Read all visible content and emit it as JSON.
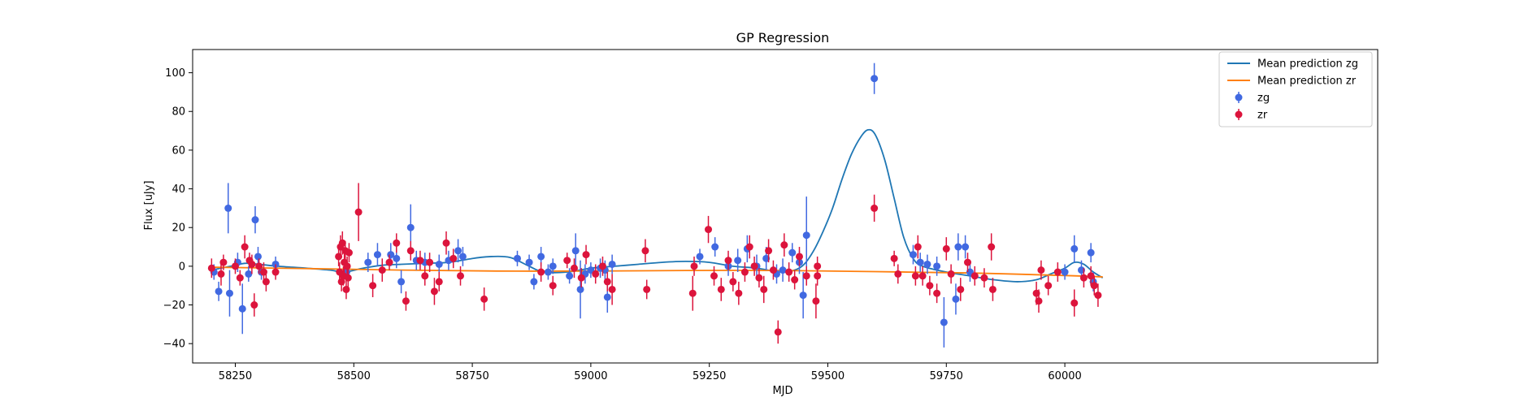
{
  "chart_data": {
    "type": "scatter",
    "title": "GP Regression",
    "xlabel": "MJD",
    "ylabel": "Flux [uJy]",
    "xlim": [
      58160,
      60660
    ],
    "ylim": [
      -50,
      112
    ],
    "xticks": [
      58250,
      58500,
      58750,
      59000,
      59250,
      59500,
      59750,
      60000
    ],
    "yticks": [
      -40,
      -20,
      0,
      20,
      40,
      60,
      80,
      100
    ],
    "legend_position": "top-right",
    "lines": [
      {
        "name": "Mean prediction zg",
        "color": "#1f77b4",
        "points": [
          [
            58200,
            -2
          ],
          [
            58240,
            0
          ],
          [
            58270,
            1.5
          ],
          [
            58300,
            1
          ],
          [
            58340,
            0
          ],
          [
            58400,
            -1
          ],
          [
            58450,
            -2
          ],
          [
            58480,
            -3
          ],
          [
            58520,
            -1
          ],
          [
            58560,
            0.5
          ],
          [
            58600,
            1
          ],
          [
            58650,
            1.5
          ],
          [
            58700,
            2
          ],
          [
            58750,
            4
          ],
          [
            58790,
            5
          ],
          [
            58830,
            4.5
          ],
          [
            58870,
            0
          ],
          [
            58900,
            -3
          ],
          [
            58950,
            -3
          ],
          [
            59000,
            -1
          ],
          [
            59050,
            0
          ],
          [
            59100,
            1
          ],
          [
            59150,
            2
          ],
          [
            59200,
            2.5
          ],
          [
            59250,
            2
          ],
          [
            59300,
            0
          ],
          [
            59350,
            -1
          ],
          [
            59400,
            -3
          ],
          [
            59430,
            -2
          ],
          [
            59450,
            1
          ],
          [
            59470,
            8
          ],
          [
            59490,
            18
          ],
          [
            59510,
            30
          ],
          [
            59530,
            45
          ],
          [
            59550,
            58
          ],
          [
            59570,
            67
          ],
          [
            59585,
            70.5
          ],
          [
            59600,
            68
          ],
          [
            59620,
            55
          ],
          [
            59640,
            35
          ],
          [
            59660,
            15
          ],
          [
            59680,
            4
          ],
          [
            59700,
            0
          ],
          [
            59750,
            -3
          ],
          [
            59800,
            -5
          ],
          [
            59850,
            -7
          ],
          [
            59900,
            -8
          ],
          [
            59940,
            -7
          ],
          [
            59970,
            -4
          ],
          [
            60000,
            -1
          ],
          [
            60020,
            2
          ],
          [
            60040,
            1
          ],
          [
            60060,
            -3
          ],
          [
            60080,
            -6
          ]
        ]
      },
      {
        "name": "Mean prediction zr",
        "color": "#ff7f0e",
        "points": [
          [
            58200,
            -0.5
          ],
          [
            58400,
            -1.2
          ],
          [
            58600,
            -2
          ],
          [
            58800,
            -2.5
          ],
          [
            59000,
            -2.5
          ],
          [
            59200,
            -2.2
          ],
          [
            59400,
            -2.2
          ],
          [
            59600,
            -2.8
          ],
          [
            59800,
            -3.5
          ],
          [
            60000,
            -4.8
          ],
          [
            60080,
            -5.5
          ]
        ]
      }
    ],
    "series": [
      {
        "name": "zg",
        "color": "#4169e1",
        "points": [
          [
            58205,
            -3,
            4
          ],
          [
            58215,
            -13,
            5
          ],
          [
            58235,
            30,
            13
          ],
          [
            58238,
            -14,
            12
          ],
          [
            58255,
            2,
            5
          ],
          [
            58265,
            -22,
            13
          ],
          [
            58278,
            -4,
            4
          ],
          [
            58292,
            24,
            7
          ],
          [
            58298,
            5,
            5
          ],
          [
            58305,
            -3,
            4
          ],
          [
            58335,
            1,
            4
          ],
          [
            58485,
            -3,
            4
          ],
          [
            58530,
            2,
            5
          ],
          [
            58550,
            6,
            6
          ],
          [
            58578,
            6,
            6
          ],
          [
            58590,
            4,
            5
          ],
          [
            58600,
            -8,
            6
          ],
          [
            58620,
            20,
            12
          ],
          [
            58632,
            3,
            5
          ],
          [
            58650,
            2,
            5
          ],
          [
            58680,
            1,
            5
          ],
          [
            58700,
            3,
            5
          ],
          [
            58720,
            8,
            6
          ],
          [
            58730,
            5,
            5
          ],
          [
            58845,
            4,
            4
          ],
          [
            58870,
            2,
            4
          ],
          [
            58880,
            -8,
            4
          ],
          [
            58895,
            5,
            5
          ],
          [
            58910,
            -3,
            4
          ],
          [
            58920,
            0,
            4
          ],
          [
            58955,
            -5,
            4
          ],
          [
            58968,
            8,
            9
          ],
          [
            58978,
            -12,
            15
          ],
          [
            58988,
            -4,
            5
          ],
          [
            59000,
            -2,
            4
          ],
          [
            59020,
            -1,
            5
          ],
          [
            59030,
            -2,
            5
          ],
          [
            59035,
            -16,
            8
          ],
          [
            59045,
            1,
            5
          ],
          [
            59230,
            5,
            4
          ],
          [
            59262,
            10,
            5
          ],
          [
            59290,
            0,
            5
          ],
          [
            59310,
            3,
            6
          ],
          [
            59330,
            9,
            7
          ],
          [
            59350,
            0,
            6
          ],
          [
            59370,
            4,
            6
          ],
          [
            59392,
            -4,
            5
          ],
          [
            59405,
            -2,
            6
          ],
          [
            59425,
            7,
            5
          ],
          [
            59440,
            2,
            6
          ],
          [
            59448,
            -15,
            12
          ],
          [
            59455,
            16,
            20
          ],
          [
            59598,
            97,
            8
          ],
          [
            59680,
            6,
            5
          ],
          [
            59695,
            2,
            5
          ],
          [
            59710,
            1,
            5
          ],
          [
            59730,
            0,
            5
          ],
          [
            59745,
            -29,
            13
          ],
          [
            59770,
            -17,
            8
          ],
          [
            59775,
            10,
            7
          ],
          [
            59790,
            10,
            6
          ],
          [
            59800,
            -3,
            5
          ],
          [
            60000,
            -3,
            4
          ],
          [
            60020,
            9,
            7
          ],
          [
            60035,
            -2,
            5
          ],
          [
            60055,
            7,
            5
          ],
          [
            60060,
            -8,
            5
          ]
        ]
      },
      {
        "name": "zr",
        "color": "#dc143c",
        "points": [
          [
            58200,
            -1,
            5
          ],
          [
            58220,
            -4,
            6
          ],
          [
            58225,
            2,
            4
          ],
          [
            58250,
            0,
            4
          ],
          [
            58260,
            -6,
            4
          ],
          [
            58270,
            10,
            6
          ],
          [
            58280,
            3,
            4
          ],
          [
            58285,
            1,
            5
          ],
          [
            58290,
            -20,
            6
          ],
          [
            58300,
            0,
            4
          ],
          [
            58310,
            -3,
            5
          ],
          [
            58315,
            -8,
            5
          ],
          [
            58335,
            -3,
            4
          ],
          [
            58468,
            5,
            5
          ],
          [
            58470,
            -3,
            5
          ],
          [
            58472,
            10,
            6
          ],
          [
            58474,
            -8,
            5
          ],
          [
            58476,
            12,
            6
          ],
          [
            58478,
            -5,
            5
          ],
          [
            58480,
            2,
            6
          ],
          [
            58482,
            8,
            5
          ],
          [
            58484,
            -12,
            5
          ],
          [
            58486,
            0,
            5
          ],
          [
            58488,
            -6,
            5
          ],
          [
            58490,
            7,
            5
          ],
          [
            58510,
            28,
            15
          ],
          [
            58540,
            -10,
            6
          ],
          [
            58560,
            -2,
            6
          ],
          [
            58575,
            2,
            4
          ],
          [
            58590,
            12,
            5
          ],
          [
            58610,
            -18,
            5
          ],
          [
            58620,
            8,
            5
          ],
          [
            58640,
            3,
            5
          ],
          [
            58650,
            -5,
            5
          ],
          [
            58660,
            2,
            5
          ],
          [
            58670,
            -13,
            7
          ],
          [
            58680,
            -8,
            5
          ],
          [
            58695,
            12,
            6
          ],
          [
            58710,
            4,
            5
          ],
          [
            58725,
            -5,
            5
          ],
          [
            58775,
            -17,
            6
          ],
          [
            58895,
            -3,
            5
          ],
          [
            58920,
            -10,
            5
          ],
          [
            58950,
            3,
            4
          ],
          [
            58965,
            -1,
            5
          ],
          [
            58980,
            -6,
            5
          ],
          [
            58990,
            6,
            5
          ],
          [
            59010,
            -4,
            5
          ],
          [
            59025,
            0,
            5
          ],
          [
            59035,
            -8,
            5
          ],
          [
            59045,
            -12,
            8
          ],
          [
            59115,
            8,
            6
          ],
          [
            59118,
            -12,
            5
          ],
          [
            59215,
            -14,
            9
          ],
          [
            59218,
            0,
            5
          ],
          [
            59248,
            19,
            7
          ],
          [
            59260,
            -5,
            5
          ],
          [
            59275,
            -12,
            6
          ],
          [
            59290,
            3,
            5
          ],
          [
            59300,
            -8,
            5
          ],
          [
            59312,
            -14,
            6
          ],
          [
            59325,
            -3,
            5
          ],
          [
            59335,
            10,
            6
          ],
          [
            59345,
            0,
            5
          ],
          [
            59355,
            -6,
            5
          ],
          [
            59365,
            -12,
            7
          ],
          [
            59375,
            8,
            6
          ],
          [
            59385,
            -2,
            5
          ],
          [
            59395,
            -34,
            6
          ],
          [
            59408,
            11,
            6
          ],
          [
            59418,
            -3,
            5
          ],
          [
            59430,
            -7,
            5
          ],
          [
            59440,
            5,
            5
          ],
          [
            59455,
            -5,
            5
          ],
          [
            59475,
            -18,
            9
          ],
          [
            59478,
            -5,
            5
          ],
          [
            59478,
            0,
            5
          ],
          [
            59598,
            30,
            7
          ],
          [
            59640,
            4,
            4
          ],
          [
            59648,
            -4,
            5
          ],
          [
            59685,
            -5,
            5
          ],
          [
            59690,
            10,
            6
          ],
          [
            59700,
            -5,
            5
          ],
          [
            59715,
            -10,
            5
          ],
          [
            59730,
            -14,
            5
          ],
          [
            59750,
            9,
            6
          ],
          [
            59760,
            -4,
            5
          ],
          [
            59780,
            -12,
            6
          ],
          [
            59795,
            2,
            5
          ],
          [
            59810,
            -5,
            5
          ],
          [
            59830,
            -6,
            5
          ],
          [
            59845,
            10,
            7
          ],
          [
            59848,
            -12,
            6
          ],
          [
            59940,
            -14,
            6
          ],
          [
            59945,
            -18,
            6
          ],
          [
            59950,
            -2,
            5
          ],
          [
            59965,
            -10,
            5
          ],
          [
            59985,
            -3,
            5
          ],
          [
            60020,
            -19,
            7
          ],
          [
            60040,
            -6,
            5
          ],
          [
            60055,
            -5,
            5
          ],
          [
            60062,
            -10,
            5
          ],
          [
            60070,
            -15,
            6
          ]
        ]
      }
    ]
  }
}
